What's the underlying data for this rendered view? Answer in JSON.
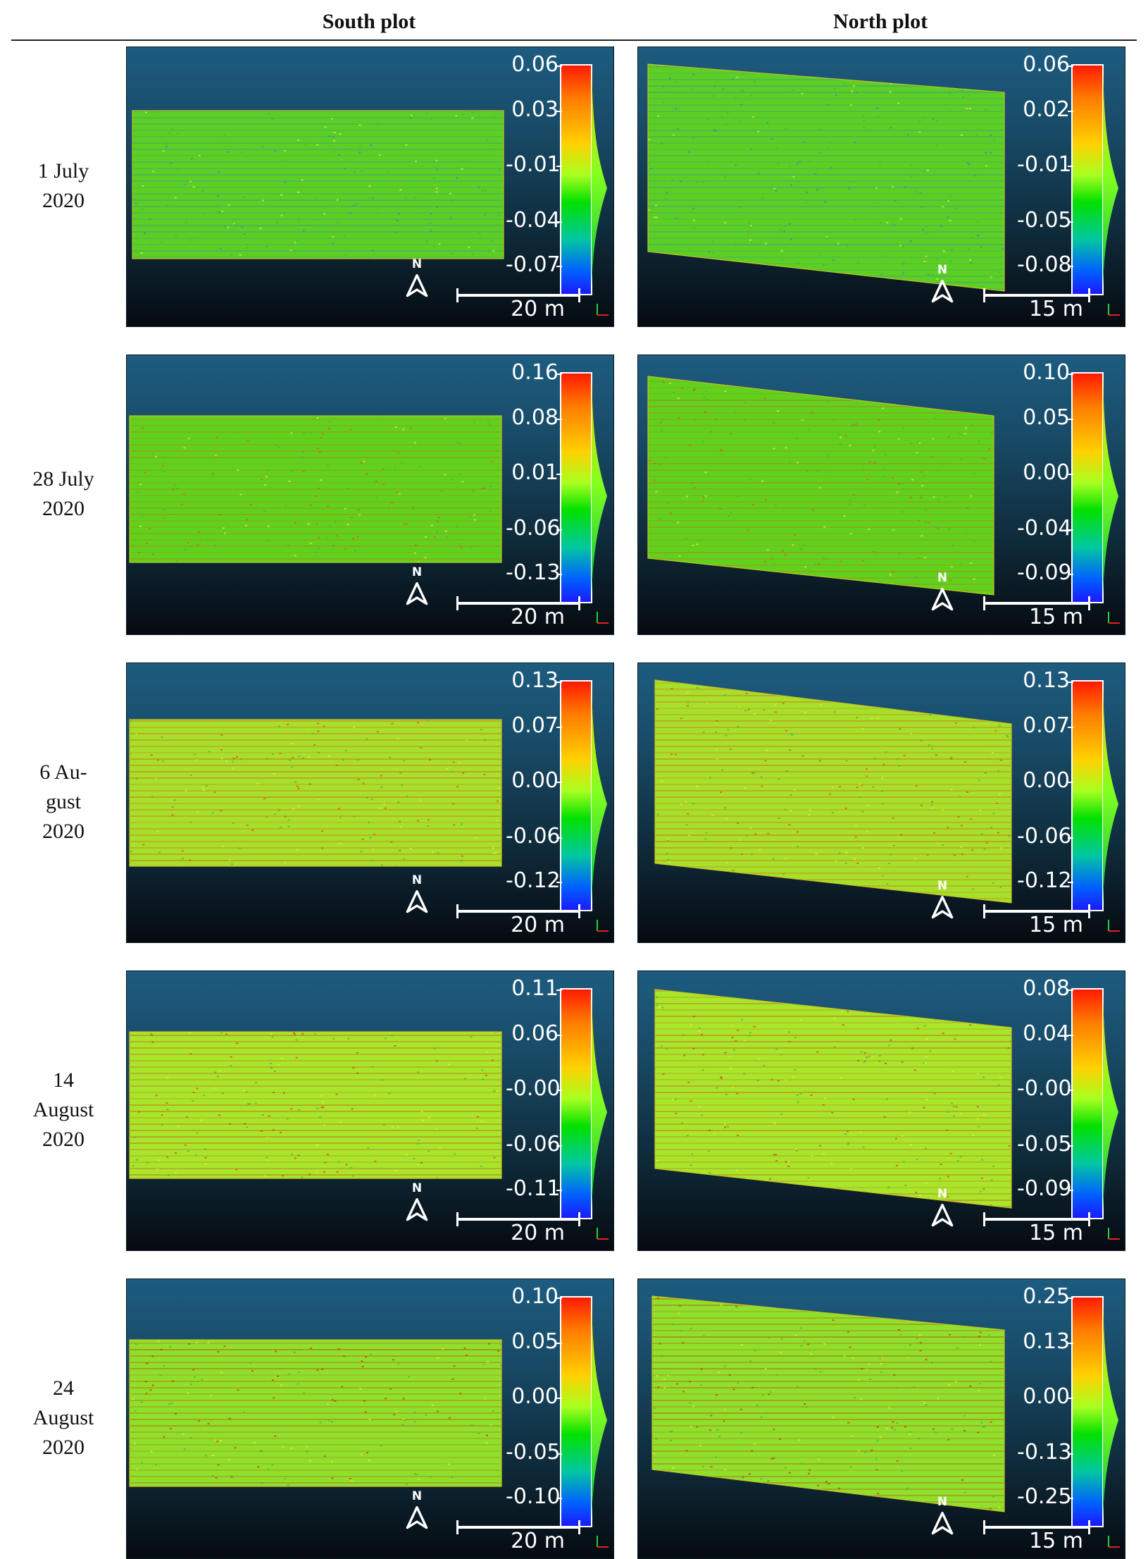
{
  "columns": [
    "South plot",
    "North plot"
  ],
  "rows": [
    {
      "label": [
        "1 July",
        "2020"
      ],
      "south": {
        "ticks": [
          "0.06",
          "0.03",
          "-0.01",
          "-0.04",
          "-0.07"
        ],
        "scale": "20 m"
      },
      "north": {
        "ticks": [
          "0.06",
          "0.02",
          "-0.01",
          "-0.05",
          "-0.08"
        ],
        "scale": "15 m"
      }
    },
    {
      "label": [
        "28 July",
        "2020"
      ],
      "south": {
        "ticks": [
          "0.16",
          "0.08",
          "0.01",
          "-0.06",
          "-0.13"
        ],
        "scale": "20 m"
      },
      "north": {
        "ticks": [
          "0.10",
          "0.05",
          "0.00",
          "-0.04",
          "-0.09"
        ],
        "scale": "15 m"
      }
    },
    {
      "label": [
        "6 Au-",
        "gust",
        "2020"
      ],
      "south": {
        "ticks": [
          "0.13",
          "0.07",
          "0.00",
          "-0.06",
          "-0.12"
        ],
        "scale": "20 m"
      },
      "north": {
        "ticks": [
          "0.13",
          "0.07",
          "0.00",
          "-0.06",
          "-0.12"
        ],
        "scale": "15 m"
      }
    },
    {
      "label": [
        "14",
        "August",
        "2020"
      ],
      "south": {
        "ticks": [
          "0.11",
          "0.06",
          "-0.00",
          "-0.06",
          "-0.11"
        ],
        "scale": "20 m"
      },
      "north": {
        "ticks": [
          "0.08",
          "0.04",
          "-0.00",
          "-0.05",
          "-0.09"
        ],
        "scale": "15 m"
      }
    },
    {
      "label": [
        "24",
        "August",
        "2020"
      ],
      "south": {
        "ticks": [
          "0.10",
          "0.05",
          "0.00",
          "-0.05",
          "-0.10"
        ],
        "scale": "20 m"
      },
      "north": {
        "ticks": [
          "0.25",
          "0.13",
          "0.00",
          "-0.13",
          "-0.25"
        ],
        "scale": "15 m"
      }
    }
  ],
  "north_label": "N",
  "colors": {
    "field_green": "#5fd31c",
    "field_yellow": "#c8e62a",
    "field_red": "#e0401a",
    "field_blue": "#2050c0"
  }
}
